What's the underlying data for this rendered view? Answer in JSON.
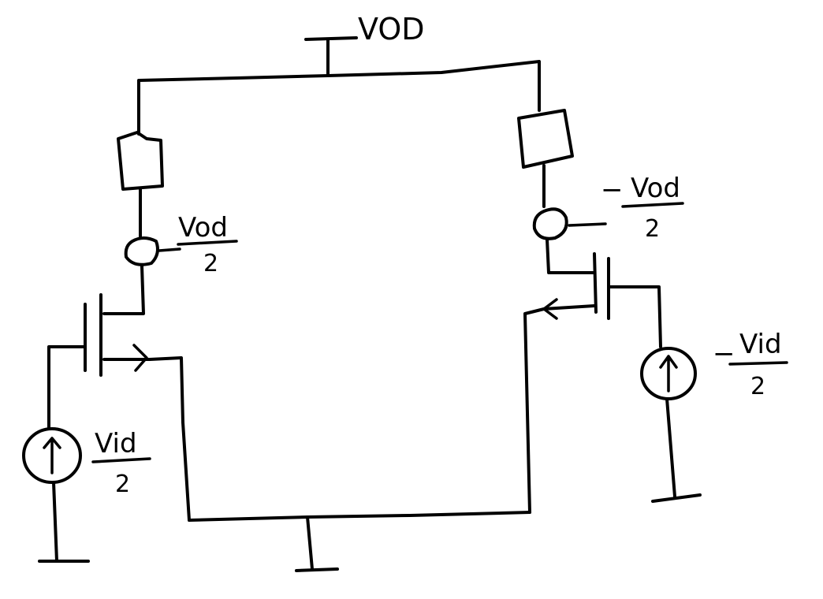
{
  "labels": {
    "supply": "VOD",
    "out_left_num": "Vod",
    "out_left_den": "2",
    "out_right_sign": "−",
    "out_right_num": "Vod",
    "out_right_den": "2",
    "in_left_num": "Vid",
    "in_left_den": "2",
    "in_right_sign": "−",
    "in_right_num": "Vid",
    "in_right_den": "2"
  }
}
